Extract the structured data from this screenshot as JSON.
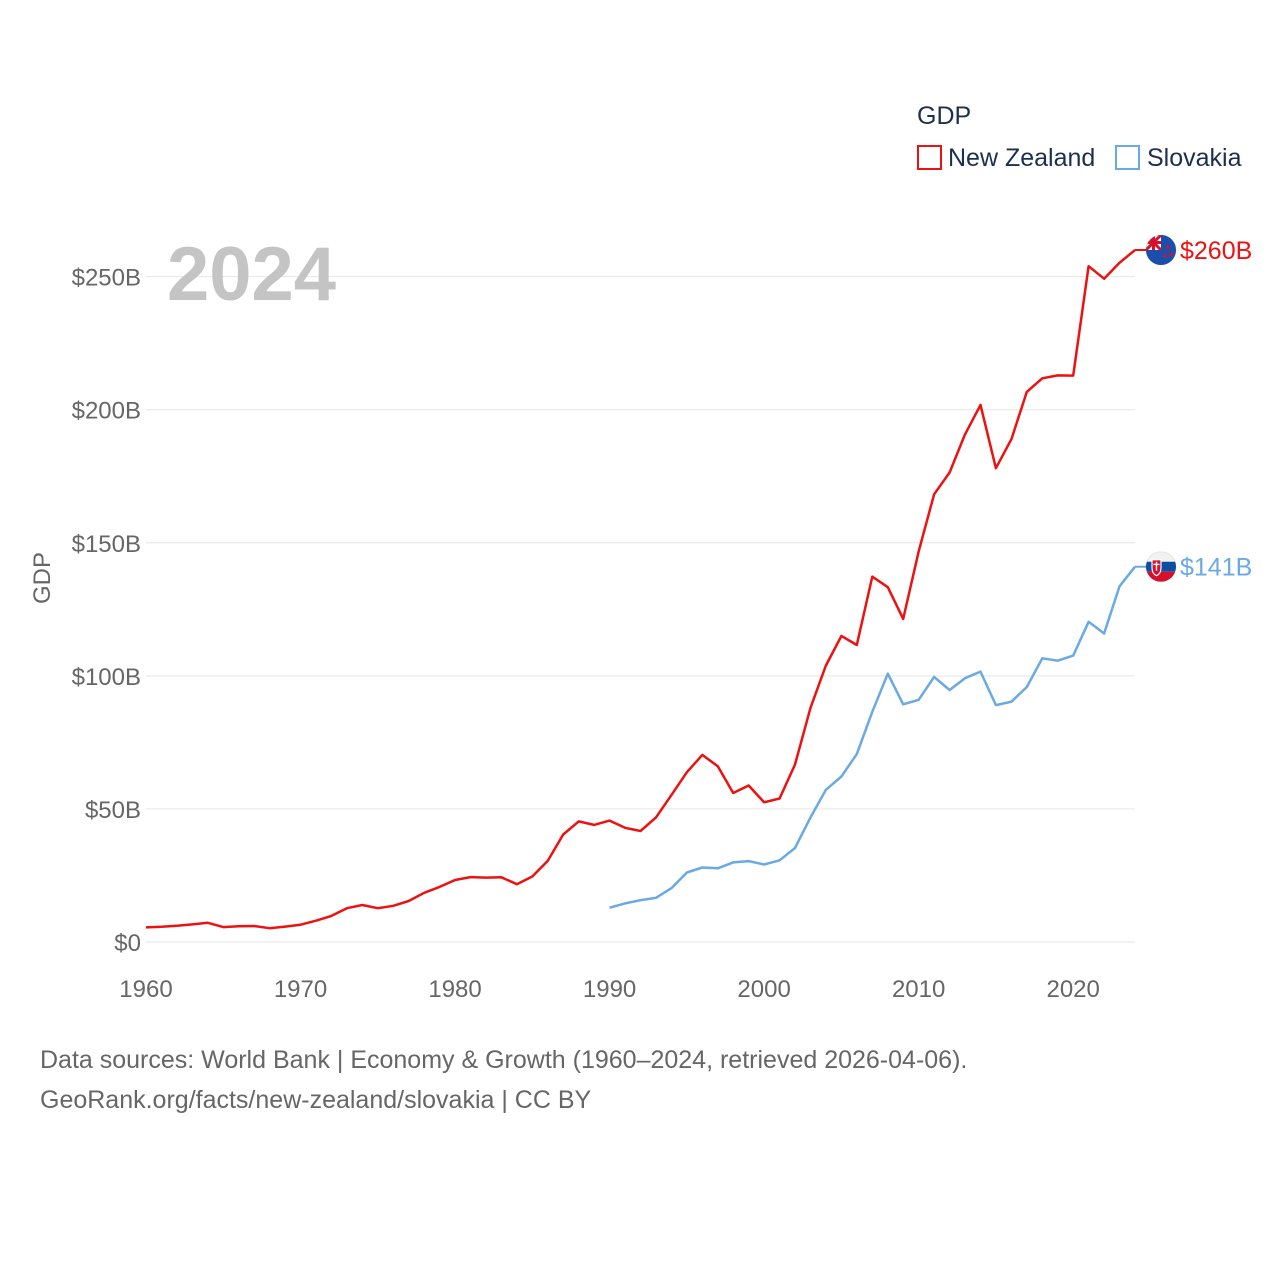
{
  "chart_data": {
    "type": "line",
    "year_label": "2024",
    "ylabel": "GDP",
    "legend_title": "GDP",
    "ylim": [
      0,
      260
    ],
    "xlim": [
      1960,
      2024
    ],
    "y_ticks": [
      {
        "value": 0,
        "label": "$0"
      },
      {
        "value": 50,
        "label": "$50B"
      },
      {
        "value": 100,
        "label": "$100B"
      },
      {
        "value": 150,
        "label": "$150B"
      },
      {
        "value": 200,
        "label": "$200B"
      },
      {
        "value": 250,
        "label": "$250B"
      }
    ],
    "x_ticks": [
      {
        "value": 1960,
        "label": "1960"
      },
      {
        "value": 1970,
        "label": "1970"
      },
      {
        "value": 1980,
        "label": "1980"
      },
      {
        "value": 1990,
        "label": "1990"
      },
      {
        "value": 2000,
        "label": "2000"
      },
      {
        "value": 2010,
        "label": "2010"
      },
      {
        "value": 2020,
        "label": "2020"
      }
    ],
    "series": [
      {
        "name": "New Zealand",
        "color": "#ee1111",
        "end_label": "$260B",
        "flag": "new-zealand-flag-icon",
        "x": [
          1960,
          1961,
          1962,
          1963,
          1964,
          1965,
          1966,
          1967,
          1968,
          1969,
          1970,
          1971,
          1972,
          1973,
          1974,
          1975,
          1976,
          1977,
          1978,
          1979,
          1980,
          1981,
          1982,
          1983,
          1984,
          1985,
          1986,
          1987,
          1988,
          1989,
          1990,
          1991,
          1992,
          1993,
          1994,
          1995,
          1996,
          1997,
          1998,
          1999,
          2000,
          2001,
          2002,
          2003,
          2004,
          2005,
          2006,
          2007,
          2008,
          2009,
          2010,
          2011,
          2012,
          2013,
          2014,
          2015,
          2016,
          2017,
          2018,
          2019,
          2020,
          2021,
          2022,
          2023,
          2024
        ],
        "values": [
          5.5,
          5.7,
          6.1,
          6.6,
          7.2,
          5.6,
          5.9,
          6.0,
          5.2,
          5.8,
          6.5,
          8.0,
          9.8,
          12.7,
          13.9,
          12.7,
          13.6,
          15.4,
          18.5,
          20.7,
          23.3,
          24.4,
          24.2,
          24.3,
          21.7,
          24.6,
          30.5,
          40.4,
          45.3,
          44.0,
          45.6,
          42.9,
          41.7,
          46.8,
          55.2,
          63.8,
          70.3,
          66.0,
          56.0,
          58.8,
          52.5,
          53.9,
          66.7,
          88.0,
          103.9,
          115.0,
          111.6,
          137.3,
          133.3,
          121.4,
          146.8,
          168.2,
          176.4,
          190.7,
          201.8,
          178.0,
          188.9,
          206.7,
          211.8,
          212.9,
          212.8,
          253.9,
          249.2,
          255.2,
          260.0
        ]
      },
      {
        "name": "Slovakia",
        "color": "#6aa9e4",
        "end_label": "$141B",
        "flag": "slovakia-flag-icon",
        "x": [
          1990,
          1991,
          1992,
          1993,
          1994,
          1995,
          1996,
          1997,
          1998,
          1999,
          2000,
          2001,
          2002,
          2003,
          2004,
          2005,
          2006,
          2007,
          2008,
          2009,
          2010,
          2011,
          2012,
          2013,
          2014,
          2015,
          2016,
          2017,
          2018,
          2019,
          2020,
          2021,
          2022,
          2023,
          2024
        ],
        "values": [
          12.9,
          14.5,
          15.7,
          16.6,
          20.2,
          26.1,
          28.0,
          27.7,
          29.9,
          30.4,
          29.1,
          30.7,
          35.3,
          46.8,
          57.2,
          62.2,
          70.6,
          86.5,
          100.8,
          89.3,
          91.0,
          99.6,
          94.7,
          99.1,
          101.6,
          89.0,
          90.3,
          95.8,
          106.6,
          105.7,
          107.6,
          120.3,
          115.9,
          133.6,
          141.0
        ]
      }
    ]
  },
  "footer": {
    "line1": "Data sources: World Bank | Economy & Growth (1960–2024, retrieved 2026-04-06).",
    "line2": "GeoRank.org/facts/new-zealand/slovakia | CC BY"
  }
}
